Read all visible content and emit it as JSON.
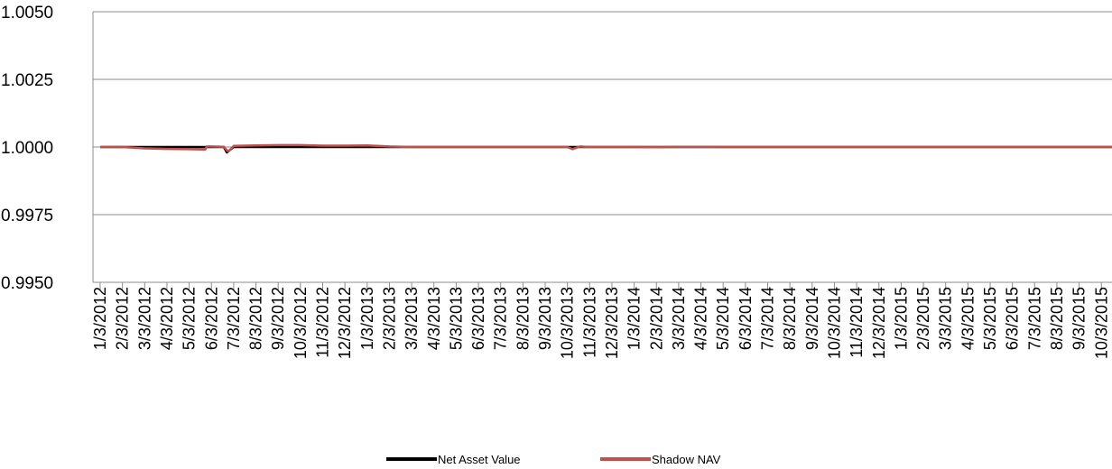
{
  "chart_data": {
    "type": "line",
    "title": "",
    "xlabel": "",
    "ylabel": "",
    "ylim": [
      0.995,
      1.005
    ],
    "y_ticks": [
      "1.0050",
      "1.0025",
      "1.0000",
      "0.9975",
      "0.9950"
    ],
    "y_tick_values": [
      1.005,
      1.0025,
      1.0,
      0.9975,
      0.995
    ],
    "grid": "horizontal",
    "legend_position": "bottom",
    "x_tick_labels": [
      "1/3/2012",
      "2/3/2012",
      "3/3/2012",
      "4/3/2012",
      "5/3/2012",
      "6/3/2012",
      "7/3/2012",
      "8/3/2012",
      "9/3/2012",
      "10/3/2012",
      "11/3/2012",
      "12/3/2012",
      "1/3/2013",
      "2/3/2013",
      "3/3/2013",
      "4/3/2013",
      "5/3/2013",
      "6/3/2013",
      "7/3/2013",
      "8/3/2013",
      "9/3/2013",
      "10/3/2013",
      "11/3/2013",
      "12/3/2013",
      "1/3/2014",
      "2/3/2014",
      "3/3/2014",
      "4/3/2014",
      "5/3/2014",
      "6/3/2014",
      "7/3/2014",
      "8/3/2014",
      "9/3/2014",
      "10/3/2014",
      "11/3/2014",
      "12/3/2014",
      "1/3/2015",
      "2/3/2015",
      "3/3/2015",
      "4/3/2015",
      "5/3/2015",
      "6/3/2015",
      "7/3/2015",
      "8/3/2015",
      "9/3/2015",
      "10/3/2015"
    ],
    "series": [
      {
        "name": "Net Asset Value",
        "color": "#000000",
        "x": [
          "1/3/2012",
          "2/3/2012",
          "3/3/2012",
          "4/3/2012",
          "5/3/2012",
          "6/3/2012",
          "6/20/2012",
          "6/24/2012",
          "7/3/2012",
          "8/3/2012",
          "9/3/2012",
          "10/3/2012",
          "11/3/2012",
          "12/3/2012",
          "1/3/2013",
          "2/3/2013",
          "3/3/2013",
          "4/3/2013",
          "5/3/2013",
          "6/3/2013",
          "7/3/2013",
          "8/3/2013",
          "9/3/2013",
          "10/3/2013",
          "11/3/2013",
          "12/3/2013",
          "1/3/2014",
          "2/3/2014",
          "3/3/2014",
          "4/3/2014",
          "5/3/2014",
          "6/3/2014",
          "7/3/2014",
          "8/3/2014",
          "9/3/2014",
          "10/3/2014",
          "11/3/2014",
          "12/3/2014",
          "1/3/2015",
          "2/3/2015",
          "3/3/2015",
          "4/3/2015",
          "5/3/2015",
          "6/3/2015",
          "7/3/2015",
          "8/3/2015",
          "9/3/2015",
          "10/3/2015",
          "10/31/2015"
        ],
        "values": [
          1.0,
          1.0,
          1.0,
          1.0,
          1.0,
          1.0,
          1.0,
          0.9998,
          1.0,
          1.0,
          1.0,
          1.0,
          1.0,
          1.0,
          1.0,
          1.0,
          1.0,
          1.0,
          1.0,
          1.0,
          1.0,
          1.0,
          1.0,
          1.0,
          1.0,
          1.0,
          1.0,
          1.0,
          1.0,
          1.0,
          1.0,
          1.0,
          1.0,
          1.0,
          1.0,
          1.0,
          1.0,
          1.0,
          1.0,
          1.0,
          1.0,
          1.0,
          1.0,
          1.0,
          1.0,
          1.0,
          1.0,
          1.0,
          1.0
        ]
      },
      {
        "name": "Shadow NAV",
        "color": "#c0504d",
        "x": [
          "1/3/2012",
          "2/3/2012",
          "3/3/2012",
          "4/3/2012",
          "5/3/2012",
          "5/25/2012",
          "5/27/2012",
          "6/3/2012",
          "6/20/2012",
          "6/25/2012",
          "6/28/2012",
          "7/3/2012",
          "8/3/2012",
          "9/3/2012",
          "10/3/2012",
          "11/3/2012",
          "12/3/2012",
          "1/3/2013",
          "2/3/2013",
          "3/3/2013",
          "4/3/2013",
          "5/3/2013",
          "6/3/2013",
          "7/3/2013",
          "8/3/2013",
          "9/3/2013",
          "10/3/2013",
          "10/10/2013",
          "10/20/2013",
          "11/3/2013",
          "12/3/2013",
          "1/3/2014",
          "2/3/2014",
          "3/3/2014",
          "4/3/2014",
          "5/3/2014",
          "6/3/2014",
          "7/3/2014",
          "8/3/2014",
          "9/3/2014",
          "10/3/2014",
          "11/3/2014",
          "12/3/2014",
          "1/3/2015",
          "2/3/2015",
          "3/3/2015",
          "4/3/2015",
          "5/3/2015",
          "6/3/2015",
          "7/3/2015",
          "8/3/2015",
          "9/3/2015",
          "10/3/2015",
          "10/31/2015"
        ],
        "values": [
          1.0,
          1.0,
          0.99995,
          0.99993,
          0.99992,
          0.99991,
          1.00002,
          1.00002,
          1.00001,
          0.99985,
          0.99988,
          1.00004,
          1.00006,
          1.00007,
          1.00007,
          1.00005,
          1.00005,
          1.00006,
          1.00002,
          1.0,
          1.0,
          1.0,
          1.0,
          1.0,
          1.0,
          1.0,
          1.0,
          0.99992,
          1.00002,
          1.0,
          1.0,
          1.0,
          0.99999,
          1.00001,
          1.00001,
          1.0,
          1.0,
          1.0,
          1.0,
          1.0,
          1.0,
          1.0,
          1.0,
          1.0,
          1.0,
          1.0,
          1.0,
          1.0,
          1.0,
          1.0,
          1.0,
          1.0,
          1.0,
          1.0
        ]
      }
    ]
  }
}
